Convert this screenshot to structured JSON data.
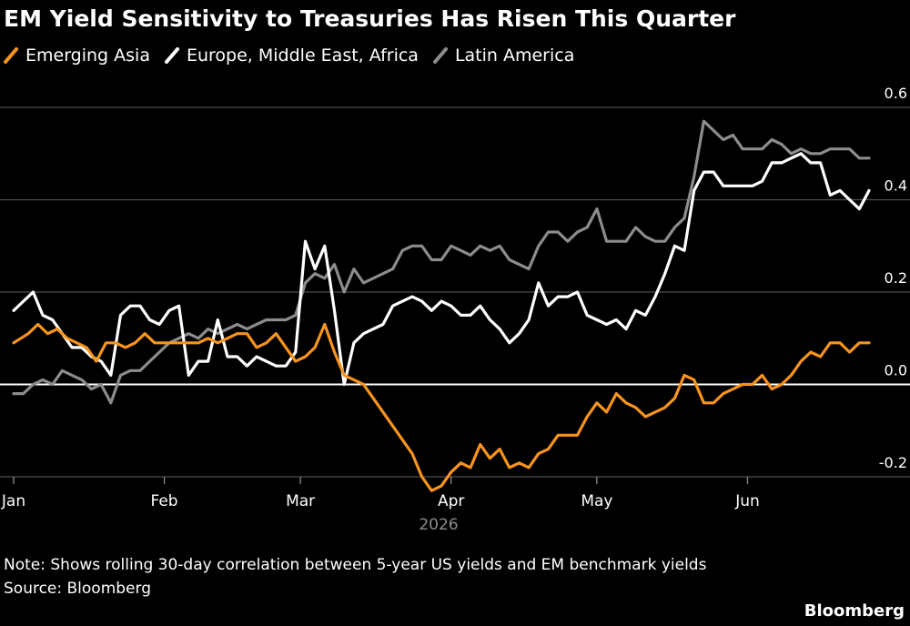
{
  "chart_data": {
    "type": "line",
    "title": "EM Yield Sensitivity to Treasuries Has Risen This Quarter",
    "xlabel": "2026",
    "ylabel": "",
    "x_range": [
      "2026-01-01",
      "2026-06-26"
    ],
    "ylim": [
      -0.2,
      0.6
    ],
    "y_ticks": [
      0.6,
      0.4,
      0.2,
      0.0,
      -0.2
    ],
    "y_tick_labels": [
      "0.6",
      "0.4",
      "0.2",
      "0.0",
      "-0.2"
    ],
    "x_ticks": [
      {
        "date": "2026-01-01",
        "label": "Jan"
      },
      {
        "date": "2026-02-01",
        "label": "Feb"
      },
      {
        "date": "2026-03-01",
        "label": "Mar"
      },
      {
        "date": "2026-04-01",
        "label": "Apr"
      },
      {
        "date": "2026-05-01",
        "label": "May"
      },
      {
        "date": "2026-06-01",
        "label": "Jun"
      }
    ],
    "grid": true,
    "legend_position": "top-left",
    "y_axis_side": "right",
    "series": [
      {
        "name": "Emerging Asia",
        "color": "#f7941d",
        "points": [
          [
            "2026-01-01",
            0.09
          ],
          [
            "2026-01-04",
            0.11
          ],
          [
            "2026-01-06",
            0.13
          ],
          [
            "2026-01-08",
            0.11
          ],
          [
            "2026-01-10",
            0.12
          ],
          [
            "2026-01-12",
            0.1
          ],
          [
            "2026-01-14",
            0.09
          ],
          [
            "2026-01-16",
            0.08
          ],
          [
            "2026-01-18",
            0.05
          ],
          [
            "2026-01-20",
            0.09
          ],
          [
            "2026-01-22",
            0.09
          ],
          [
            "2026-01-24",
            0.08
          ],
          [
            "2026-01-26",
            0.09
          ],
          [
            "2026-01-28",
            0.11
          ],
          [
            "2026-01-30",
            0.09
          ],
          [
            "2026-02-02",
            0.09
          ],
          [
            "2026-02-05",
            0.09
          ],
          [
            "2026-02-08",
            0.09
          ],
          [
            "2026-02-10",
            0.1
          ],
          [
            "2026-02-12",
            0.09
          ],
          [
            "2026-02-14",
            0.1
          ],
          [
            "2026-02-16",
            0.11
          ],
          [
            "2026-02-18",
            0.11
          ],
          [
            "2026-02-20",
            0.08
          ],
          [
            "2026-02-22",
            0.09
          ],
          [
            "2026-02-24",
            0.11
          ],
          [
            "2026-02-26",
            0.08
          ],
          [
            "2026-02-28",
            0.05
          ],
          [
            "2026-03-02",
            0.06
          ],
          [
            "2026-03-04",
            0.08
          ],
          [
            "2026-03-06",
            0.13
          ],
          [
            "2026-03-08",
            0.07
          ],
          [
            "2026-03-10",
            0.02
          ],
          [
            "2026-03-12",
            0.01
          ],
          [
            "2026-03-14",
            0.0
          ],
          [
            "2026-03-16",
            -0.03
          ],
          [
            "2026-03-18",
            -0.06
          ],
          [
            "2026-03-20",
            -0.09
          ],
          [
            "2026-03-22",
            -0.12
          ],
          [
            "2026-03-24",
            -0.15
          ],
          [
            "2026-03-26",
            -0.2
          ],
          [
            "2026-03-28",
            -0.23
          ],
          [
            "2026-03-30",
            -0.22
          ],
          [
            "2026-04-01",
            -0.19
          ],
          [
            "2026-04-03",
            -0.17
          ],
          [
            "2026-04-05",
            -0.18
          ],
          [
            "2026-04-07",
            -0.13
          ],
          [
            "2026-04-09",
            -0.16
          ],
          [
            "2026-04-11",
            -0.14
          ],
          [
            "2026-04-13",
            -0.18
          ],
          [
            "2026-04-15",
            -0.17
          ],
          [
            "2026-04-17",
            -0.18
          ],
          [
            "2026-04-19",
            -0.15
          ],
          [
            "2026-04-21",
            -0.14
          ],
          [
            "2026-04-23",
            -0.11
          ],
          [
            "2026-04-25",
            -0.11
          ],
          [
            "2026-04-27",
            -0.11
          ],
          [
            "2026-04-29",
            -0.07
          ],
          [
            "2026-05-01",
            -0.04
          ],
          [
            "2026-05-03",
            -0.06
          ],
          [
            "2026-05-05",
            -0.02
          ],
          [
            "2026-05-07",
            -0.04
          ],
          [
            "2026-05-09",
            -0.05
          ],
          [
            "2026-05-11",
            -0.07
          ],
          [
            "2026-05-13",
            -0.06
          ],
          [
            "2026-05-15",
            -0.05
          ],
          [
            "2026-05-17",
            -0.03
          ],
          [
            "2026-05-19",
            0.02
          ],
          [
            "2026-05-21",
            0.01
          ],
          [
            "2026-05-23",
            -0.04
          ],
          [
            "2026-05-25",
            -0.04
          ],
          [
            "2026-05-27",
            -0.02
          ],
          [
            "2026-05-29",
            -0.01
          ],
          [
            "2026-05-31",
            0.0
          ],
          [
            "2026-06-02",
            0.0
          ],
          [
            "2026-06-04",
            0.02
          ],
          [
            "2026-06-06",
            -0.01
          ],
          [
            "2026-06-08",
            0.0
          ],
          [
            "2026-06-10",
            0.02
          ],
          [
            "2026-06-12",
            0.05
          ],
          [
            "2026-06-14",
            0.07
          ],
          [
            "2026-06-16",
            0.06
          ],
          [
            "2026-06-18",
            0.09
          ],
          [
            "2026-06-20",
            0.09
          ],
          [
            "2026-06-22",
            0.07
          ],
          [
            "2026-06-24",
            0.09
          ],
          [
            "2026-06-26",
            0.09
          ]
        ]
      },
      {
        "name": "Europe, Middle East, Africa",
        "color": "#ffffff",
        "points": [
          [
            "2026-01-01",
            0.16
          ],
          [
            "2026-01-03",
            0.18
          ],
          [
            "2026-01-05",
            0.2
          ],
          [
            "2026-01-07",
            0.15
          ],
          [
            "2026-01-09",
            0.14
          ],
          [
            "2026-01-11",
            0.11
          ],
          [
            "2026-01-13",
            0.08
          ],
          [
            "2026-01-15",
            0.08
          ],
          [
            "2026-01-17",
            0.06
          ],
          [
            "2026-01-19",
            0.05
          ],
          [
            "2026-01-21",
            0.02
          ],
          [
            "2026-01-23",
            0.15
          ],
          [
            "2026-01-25",
            0.17
          ],
          [
            "2026-01-27",
            0.17
          ],
          [
            "2026-01-29",
            0.14
          ],
          [
            "2026-01-31",
            0.13
          ],
          [
            "2026-02-02",
            0.16
          ],
          [
            "2026-02-04",
            0.17
          ],
          [
            "2026-02-06",
            0.02
          ],
          [
            "2026-02-08",
            0.05
          ],
          [
            "2026-02-10",
            0.05
          ],
          [
            "2026-02-12",
            0.14
          ],
          [
            "2026-02-14",
            0.06
          ],
          [
            "2026-02-16",
            0.06
          ],
          [
            "2026-02-18",
            0.04
          ],
          [
            "2026-02-20",
            0.06
          ],
          [
            "2026-02-22",
            0.05
          ],
          [
            "2026-02-24",
            0.04
          ],
          [
            "2026-02-26",
            0.04
          ],
          [
            "2026-02-28",
            0.07
          ],
          [
            "2026-03-02",
            0.31
          ],
          [
            "2026-03-04",
            0.25
          ],
          [
            "2026-03-06",
            0.3
          ],
          [
            "2026-03-08",
            0.16
          ],
          [
            "2026-03-10",
            0.0
          ],
          [
            "2026-03-12",
            0.09
          ],
          [
            "2026-03-14",
            0.11
          ],
          [
            "2026-03-16",
            0.12
          ],
          [
            "2026-03-18",
            0.13
          ],
          [
            "2026-03-20",
            0.17
          ],
          [
            "2026-03-22",
            0.18
          ],
          [
            "2026-03-24",
            0.19
          ],
          [
            "2026-03-26",
            0.18
          ],
          [
            "2026-03-28",
            0.16
          ],
          [
            "2026-03-30",
            0.18
          ],
          [
            "2026-04-01",
            0.17
          ],
          [
            "2026-04-03",
            0.15
          ],
          [
            "2026-04-05",
            0.15
          ],
          [
            "2026-04-07",
            0.17
          ],
          [
            "2026-04-09",
            0.14
          ],
          [
            "2026-04-11",
            0.12
          ],
          [
            "2026-04-13",
            0.09
          ],
          [
            "2026-04-15",
            0.11
          ],
          [
            "2026-04-17",
            0.14
          ],
          [
            "2026-04-19",
            0.22
          ],
          [
            "2026-04-21",
            0.17
          ],
          [
            "2026-04-23",
            0.19
          ],
          [
            "2026-04-25",
            0.19
          ],
          [
            "2026-04-27",
            0.2
          ],
          [
            "2026-04-29",
            0.15
          ],
          [
            "2026-05-01",
            0.14
          ],
          [
            "2026-05-03",
            0.13
          ],
          [
            "2026-05-05",
            0.14
          ],
          [
            "2026-05-07",
            0.12
          ],
          [
            "2026-05-09",
            0.16
          ],
          [
            "2026-05-11",
            0.15
          ],
          [
            "2026-05-13",
            0.19
          ],
          [
            "2026-05-15",
            0.24
          ],
          [
            "2026-05-17",
            0.3
          ],
          [
            "2026-05-19",
            0.29
          ],
          [
            "2026-05-21",
            0.42
          ],
          [
            "2026-05-23",
            0.46
          ],
          [
            "2026-05-25",
            0.46
          ],
          [
            "2026-05-27",
            0.43
          ],
          [
            "2026-05-29",
            0.43
          ],
          [
            "2026-05-31",
            0.43
          ],
          [
            "2026-06-02",
            0.43
          ],
          [
            "2026-06-04",
            0.44
          ],
          [
            "2026-06-06",
            0.48
          ],
          [
            "2026-06-08",
            0.48
          ],
          [
            "2026-06-10",
            0.49
          ],
          [
            "2026-06-12",
            0.5
          ],
          [
            "2026-06-14",
            0.48
          ],
          [
            "2026-06-16",
            0.48
          ],
          [
            "2026-06-18",
            0.41
          ],
          [
            "2026-06-20",
            0.42
          ],
          [
            "2026-06-22",
            0.4
          ],
          [
            "2026-06-24",
            0.38
          ],
          [
            "2026-06-26",
            0.42
          ]
        ]
      },
      {
        "name": "Latin America",
        "color": "#8c8c8c",
        "points": [
          [
            "2026-01-01",
            -0.02
          ],
          [
            "2026-01-03",
            -0.02
          ],
          [
            "2026-01-05",
            0.0
          ],
          [
            "2026-01-07",
            0.01
          ],
          [
            "2026-01-09",
            0.0
          ],
          [
            "2026-01-11",
            0.03
          ],
          [
            "2026-01-13",
            0.02
          ],
          [
            "2026-01-15",
            0.01
          ],
          [
            "2026-01-17",
            -0.01
          ],
          [
            "2026-01-19",
            0.0
          ],
          [
            "2026-01-21",
            -0.04
          ],
          [
            "2026-01-23",
            0.02
          ],
          [
            "2026-01-25",
            0.03
          ],
          [
            "2026-01-27",
            0.03
          ],
          [
            "2026-01-29",
            0.05
          ],
          [
            "2026-01-31",
            0.07
          ],
          [
            "2026-02-02",
            0.09
          ],
          [
            "2026-02-04",
            0.1
          ],
          [
            "2026-02-06",
            0.11
          ],
          [
            "2026-02-08",
            0.1
          ],
          [
            "2026-02-10",
            0.12
          ],
          [
            "2026-02-12",
            0.11
          ],
          [
            "2026-02-14",
            0.12
          ],
          [
            "2026-02-16",
            0.13
          ],
          [
            "2026-02-18",
            0.12
          ],
          [
            "2026-02-20",
            0.13
          ],
          [
            "2026-02-22",
            0.14
          ],
          [
            "2026-02-24",
            0.14
          ],
          [
            "2026-02-26",
            0.14
          ],
          [
            "2026-02-28",
            0.15
          ],
          [
            "2026-03-02",
            0.22
          ],
          [
            "2026-03-04",
            0.24
          ],
          [
            "2026-03-06",
            0.23
          ],
          [
            "2026-03-08",
            0.26
          ],
          [
            "2026-03-10",
            0.2
          ],
          [
            "2026-03-12",
            0.25
          ],
          [
            "2026-03-14",
            0.22
          ],
          [
            "2026-03-16",
            0.23
          ],
          [
            "2026-03-18",
            0.24
          ],
          [
            "2026-03-20",
            0.25
          ],
          [
            "2026-03-22",
            0.29
          ],
          [
            "2026-03-24",
            0.3
          ],
          [
            "2026-03-26",
            0.3
          ],
          [
            "2026-03-28",
            0.27
          ],
          [
            "2026-03-30",
            0.27
          ],
          [
            "2026-04-01",
            0.3
          ],
          [
            "2026-04-03",
            0.29
          ],
          [
            "2026-04-05",
            0.28
          ],
          [
            "2026-04-07",
            0.3
          ],
          [
            "2026-04-09",
            0.29
          ],
          [
            "2026-04-11",
            0.3
          ],
          [
            "2026-04-13",
            0.27
          ],
          [
            "2026-04-15",
            0.26
          ],
          [
            "2026-04-17",
            0.25
          ],
          [
            "2026-04-19",
            0.3
          ],
          [
            "2026-04-21",
            0.33
          ],
          [
            "2026-04-23",
            0.33
          ],
          [
            "2026-04-25",
            0.31
          ],
          [
            "2026-04-27",
            0.33
          ],
          [
            "2026-04-29",
            0.34
          ],
          [
            "2026-05-01",
            0.38
          ],
          [
            "2026-05-03",
            0.31
          ],
          [
            "2026-05-05",
            0.31
          ],
          [
            "2026-05-07",
            0.31
          ],
          [
            "2026-05-09",
            0.34
          ],
          [
            "2026-05-11",
            0.32
          ],
          [
            "2026-05-13",
            0.31
          ],
          [
            "2026-05-15",
            0.31
          ],
          [
            "2026-05-17",
            0.34
          ],
          [
            "2026-05-19",
            0.36
          ],
          [
            "2026-05-21",
            0.45
          ],
          [
            "2026-05-23",
            0.57
          ],
          [
            "2026-05-25",
            0.55
          ],
          [
            "2026-05-27",
            0.53
          ],
          [
            "2026-05-29",
            0.54
          ],
          [
            "2026-05-31",
            0.51
          ],
          [
            "2026-06-02",
            0.51
          ],
          [
            "2026-06-04",
            0.51
          ],
          [
            "2026-06-06",
            0.53
          ],
          [
            "2026-06-08",
            0.52
          ],
          [
            "2026-06-10",
            0.5
          ],
          [
            "2026-06-12",
            0.51
          ],
          [
            "2026-06-14",
            0.5
          ],
          [
            "2026-06-16",
            0.5
          ],
          [
            "2026-06-18",
            0.51
          ],
          [
            "2026-06-20",
            0.51
          ],
          [
            "2026-06-22",
            0.51
          ],
          [
            "2026-06-24",
            0.49
          ],
          [
            "2026-06-26",
            0.49
          ]
        ]
      }
    ]
  },
  "note": "Note: Shows rolling 30-day correlation between 5-year US yields and EM benchmark yields",
  "source": "Source: Bloomberg",
  "brand": "Bloomberg",
  "colors": {
    "background": "#000000",
    "gridline": "#4d4d4d",
    "zero_line": "#ffffff",
    "text": "#ffffff"
  }
}
